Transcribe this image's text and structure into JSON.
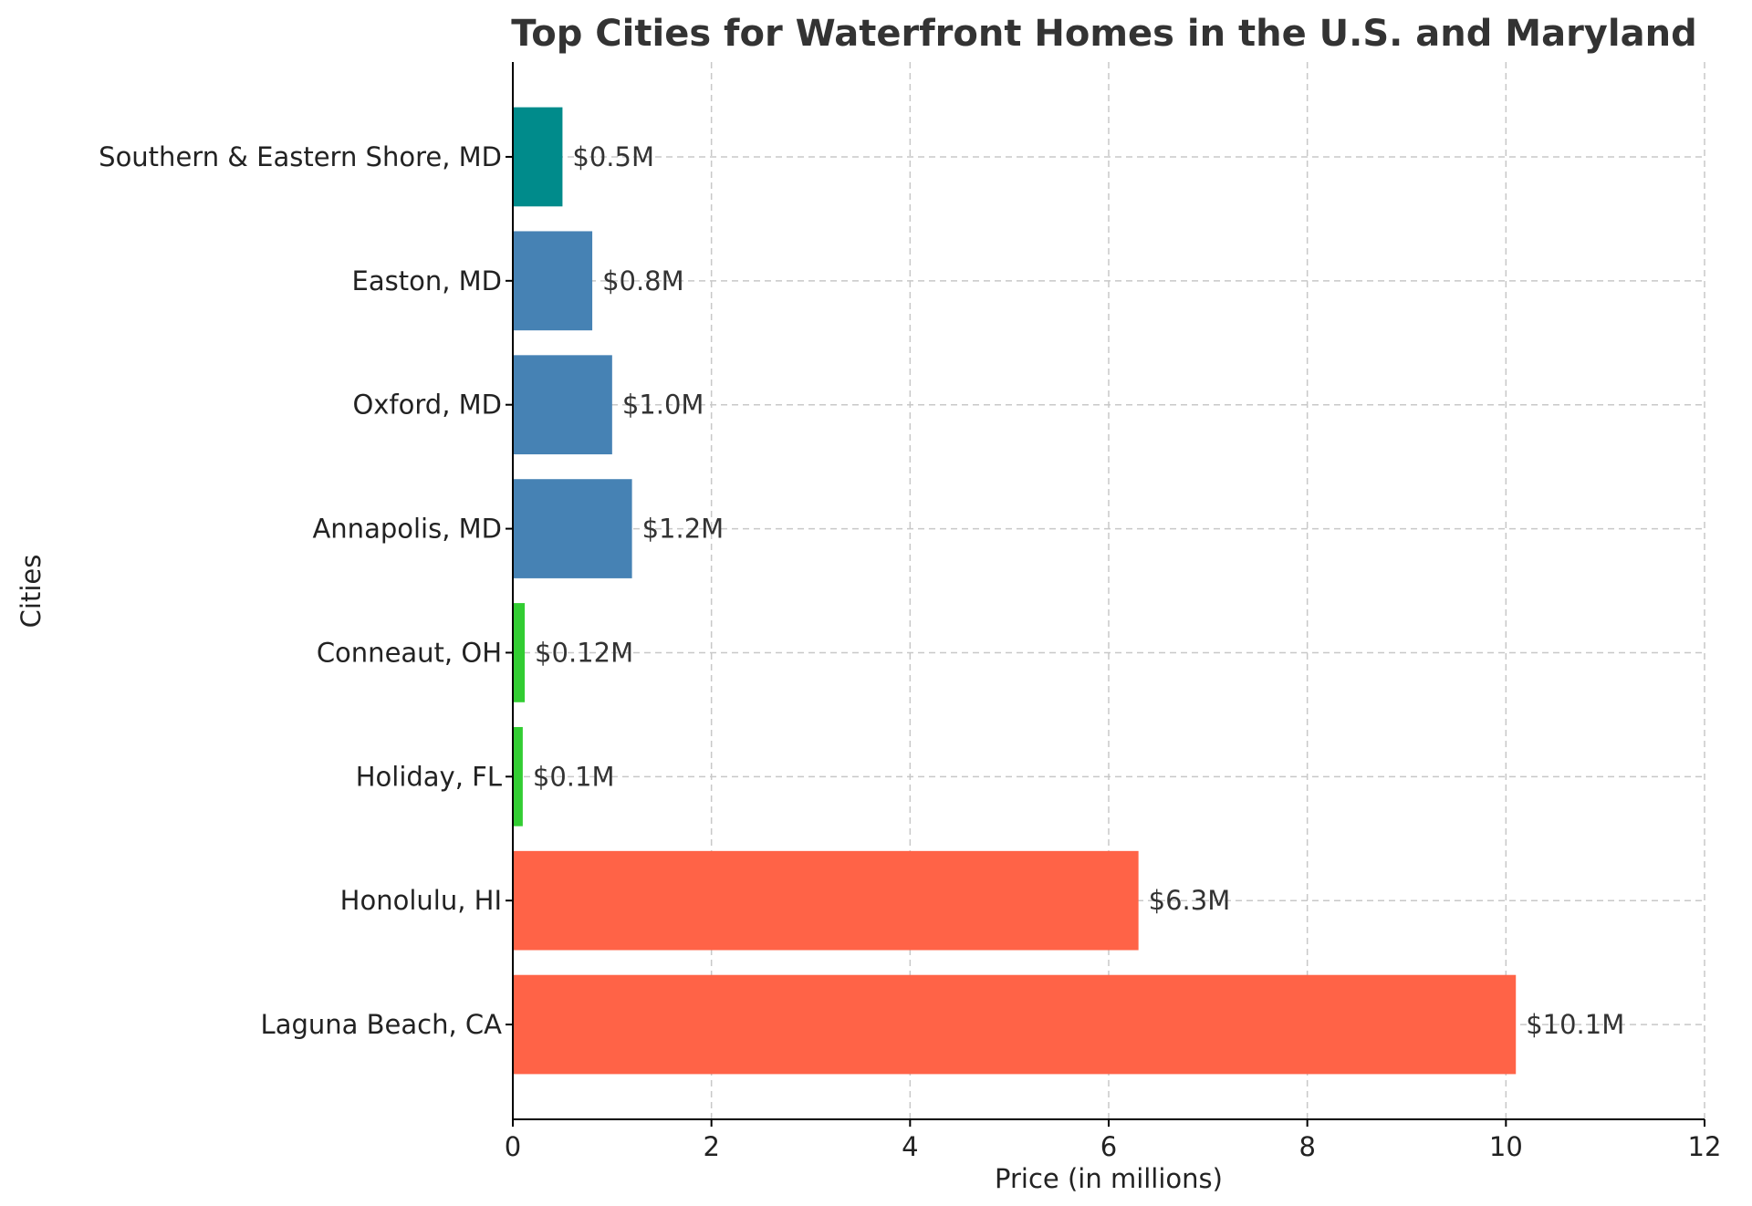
{
  "chart_data": {
    "type": "bar",
    "orientation": "horizontal",
    "title": "Top Cities for Waterfront Homes in the U.S. and Maryland",
    "xlabel": "Price (in millions)",
    "ylabel": "Cities",
    "xlim": [
      0,
      12
    ],
    "xticks": [
      0,
      2,
      4,
      6,
      8,
      10,
      12
    ],
    "grid": true,
    "categories": [
      "Laguna Beach, CA",
      "Honolulu, HI",
      "Holiday, FL",
      "Conneaut, OH",
      "Annapolis, MD",
      "Oxford, MD",
      "Easton, MD",
      "Southern & Eastern Shore, MD"
    ],
    "values": [
      10.1,
      6.3,
      0.1,
      0.12,
      1.2,
      1.0,
      0.8,
      0.5
    ],
    "data_labels": [
      "$10.1M",
      "$6.3M",
      "$0.1M",
      "$0.12M",
      "$1.2M",
      "$1.0M",
      "$0.8M",
      "$0.5M"
    ],
    "colors": [
      "#ff6347",
      "#ff6347",
      "#32cd32",
      "#32cd32",
      "#4682b4",
      "#4682b4",
      "#4682b4",
      "#008b8b"
    ]
  }
}
